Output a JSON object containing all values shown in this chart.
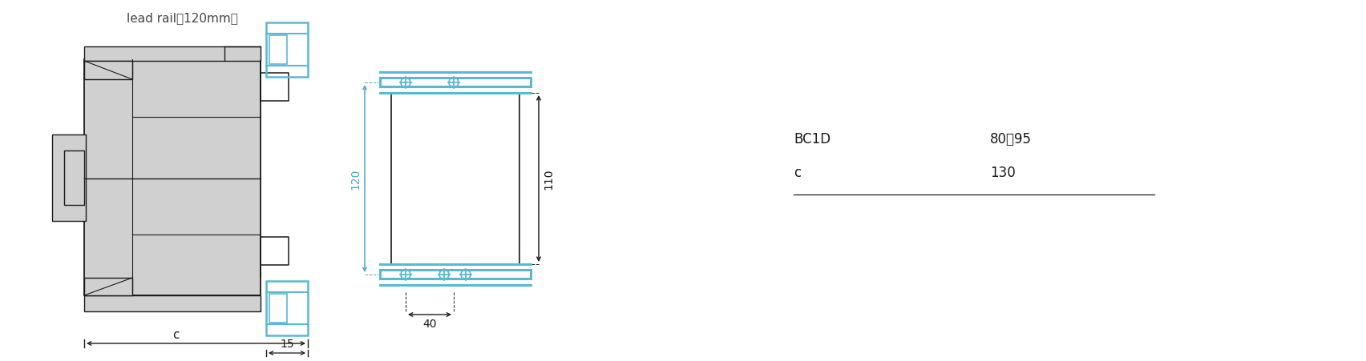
{
  "bg_color": "#ffffff",
  "line_color": "#1a1a1a",
  "blue_color": "#5bb8d4",
  "gray_fill": "#d0d0d0",
  "dim_blue": "#4da8c4",
  "title_text": "lead rail（120mm）",
  "dim_120": "120",
  "dim_110": "110",
  "dim_15": "15",
  "dim_40": "40",
  "dim_c": "c",
  "table": [
    {
      "col1": "BC1D",
      "col2": "80、95"
    },
    {
      "col1": "c",
      "col2": "130"
    }
  ]
}
